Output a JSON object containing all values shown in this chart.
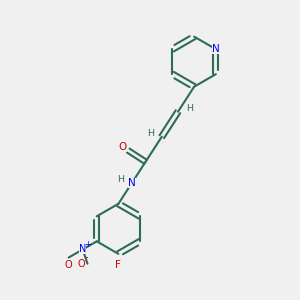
{
  "bg_color": "#f0f0f0",
  "bond_color": "#2d6b5a",
  "nitrogen_color": "#0000ee",
  "oxygen_color": "#cc0000",
  "fluorine_color": "#cc0000",
  "text_color": "#2d6b5a",
  "line_width": 1.5,
  "figsize": [
    3.0,
    3.0
  ],
  "dpi": 100,
  "xlim": [
    0,
    10
  ],
  "ylim": [
    0,
    10
  ]
}
